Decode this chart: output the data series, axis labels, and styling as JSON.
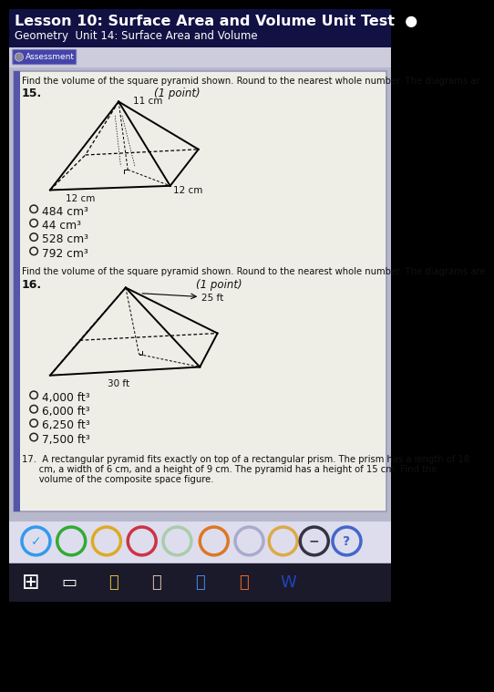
{
  "title": "Lesson 10: Surface Area and Volume Unit Test",
  "subtitle": "Geometry  Unit 14: Surface Area and Volume",
  "bg_color": "#b8b8cc",
  "panel_bg": "#eeeee6",
  "header_bg": "#111144",
  "assessment_btn_color": "#4444aa",
  "q15_prompt": "Find the volume of the square pyramid shown. Round to the nearest whole number. The diagrams ar",
  "q15_num": "15.",
  "q15_point": "(1 point)",
  "q15_dim1": "11 cm",
  "q15_dim2": "12 cm",
  "q15_dim3": "12 cm",
  "q15_choices": [
    "484 cm³",
    "44 cm³",
    "528 cm³",
    "792 cm³"
  ],
  "q16_prompt": "Find the volume of the square pyramid shown. Round to the nearest whole number. The diagrams are",
  "q16_num": "16.",
  "q16_point": "(1 point)",
  "q16_dim1": "25 ft",
  "q16_dim2": "30 ft",
  "q16_choices": [
    "4,000 ft³",
    "6,000 ft³",
    "6,250 ft³",
    "7,500 ft³"
  ],
  "q17_text1": "17.  A rectangular pyramid fits exactly on top of a rectangular prism. The prism has a length of 18",
  "q17_text2": "      cm, a width of 6 cm, and a height of 9 cm. The pyramid has a height of 15 cm. Find the",
  "q17_text3": "      volume of the composite space figure.",
  "left_stripe_color": "#5555aa",
  "screen_bg": "#000000"
}
